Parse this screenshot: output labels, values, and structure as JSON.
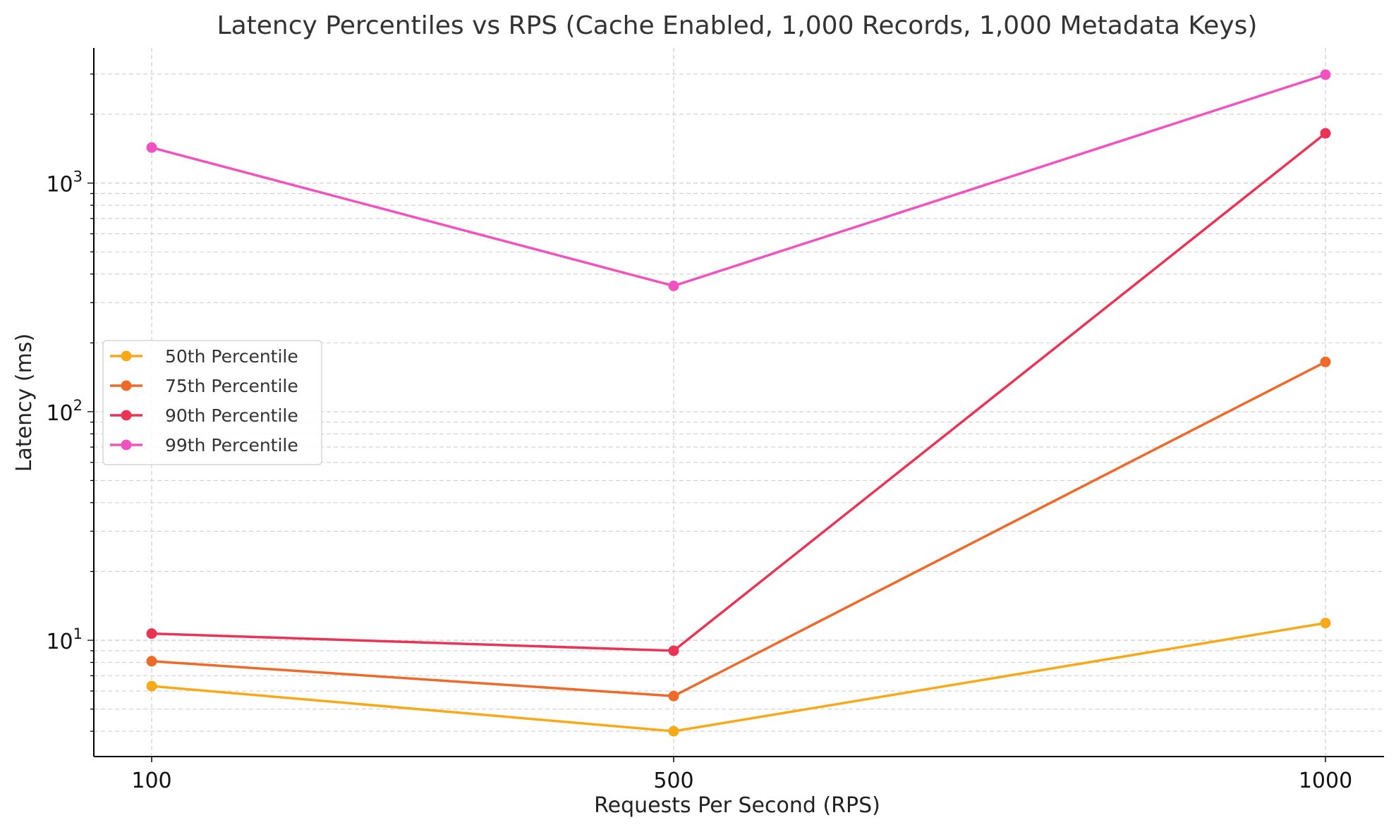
{
  "chart_data": {
    "type": "line",
    "title": "Latency Percentiles vs RPS (Cache Enabled, 1,000 Records, 1,000 Metadata Keys)",
    "xlabel": "Requests Per Second (RPS)",
    "ylabel": "Latency (ms)",
    "x_categories": [
      "100",
      "500",
      "1000"
    ],
    "y_scale": "log",
    "ylim": [
      3.1,
      3900
    ],
    "y_major_ticks": [
      10,
      100,
      1000
    ],
    "y_tick_labels": [
      {
        "base": "10",
        "exp": "1"
      },
      {
        "base": "10",
        "exp": "2"
      },
      {
        "base": "10",
        "exp": "3"
      }
    ],
    "grid": true,
    "legend_position": "center-left",
    "series": [
      {
        "name": "50th Percentile",
        "color": "#F7A918",
        "values": [
          6.3,
          4.0,
          11.9
        ]
      },
      {
        "name": "75th Percentile",
        "color": "#EE6A2A",
        "values": [
          8.1,
          5.7,
          165
        ]
      },
      {
        "name": "90th Percentile",
        "color": "#EA3456",
        "values": [
          10.7,
          9.0,
          1650
        ]
      },
      {
        "name": "99th Percentile",
        "color": "#F252C0",
        "values": [
          1430,
          355,
          2980
        ]
      }
    ]
  }
}
